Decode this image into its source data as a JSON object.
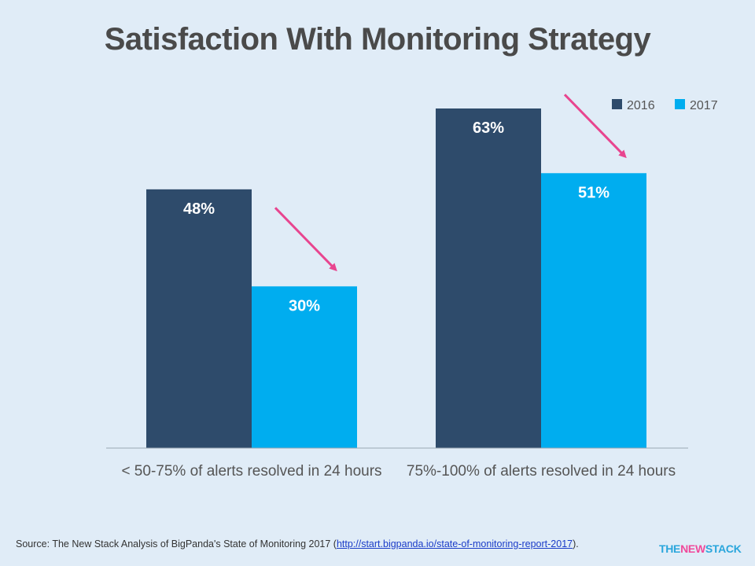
{
  "chart_data": {
    "type": "bar",
    "title": "Satisfaction With Monitoring Strategy",
    "categories": [
      "< 50-75% of alerts resolved in 24 hours",
      "75%-100% of alerts resolved in 24 hours"
    ],
    "series": [
      {
        "name": "2016",
        "values": [
          48,
          63
        ],
        "labels": [
          "48%",
          "63%"
        ],
        "color": "#2e4b6b"
      },
      {
        "name": "2017",
        "values": [
          30,
          51
        ],
        "labels": [
          "30%",
          "51%"
        ],
        "color": "#00adef"
      }
    ],
    "ylim": [
      0,
      70
    ],
    "grid": false,
    "legend_position": "top-right",
    "arrow_color": "#e8458f"
  },
  "source": {
    "prefix": "Source: The New Stack Analysis of BigPanda's  State of Monitoring  2017 (",
    "link_text": "http://start.bigpanda.io/state-of-monitoring-report-2017",
    "suffix": ")."
  },
  "logo": {
    "part1": "THE",
    "part2": "NEW",
    "part3": "STACK"
  }
}
